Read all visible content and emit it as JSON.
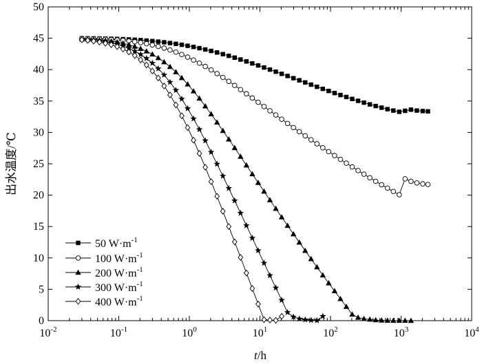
{
  "chart_data": {
    "type": "line",
    "xscale": "log",
    "xlim": [
      0.01,
      10000
    ],
    "ylim": [
      0,
      50
    ],
    "grid": false,
    "legend_position": "bottom-left",
    "xlabel": {
      "italic": "t",
      "rest": "/h"
    },
    "ylabel": "出水温度/℃",
    "x_ticks": [
      {
        "value": 0.01,
        "base": "10",
        "exp": "-2"
      },
      {
        "value": 0.1,
        "base": "10",
        "exp": "-1"
      },
      {
        "value": 1,
        "base": "10",
        "exp": "0"
      },
      {
        "value": 10,
        "base": "10",
        "exp": "1"
      },
      {
        "value": 100,
        "base": "10",
        "exp": "2"
      },
      {
        "value": 1000,
        "base": "10",
        "exp": "3"
      },
      {
        "value": 10000,
        "base": "10",
        "exp": "4"
      }
    ],
    "y_ticks": [
      0,
      5,
      10,
      15,
      20,
      25,
      30,
      35,
      40,
      45,
      50
    ],
    "series": [
      {
        "name": "50 W·m-1",
        "label_main": "50 W·m",
        "label_sup": "-1",
        "marker": "square",
        "x": [
          0.03,
          0.0363,
          0.044,
          0.0533,
          0.0646,
          0.0782,
          0.0948,
          0.1148,
          0.139,
          0.1684,
          0.204,
          0.247,
          0.2993,
          0.3625,
          0.4392,
          0.532,
          0.6444,
          0.7806,
          0.9456,
          1.1454,
          1.3875,
          1.6808,
          2.036,
          2.4663,
          2.9876,
          3.619,
          4.3839,
          5.3104,
          6.4328,
          7.7924,
          9.4394,
          11.4344,
          13.8512,
          16.7787,
          20.3249,
          24.6207,
          29.8244,
          36.1279,
          43.7636,
          53.0132,
          64.2178,
          77.7906,
          94.2318,
          114.1479,
          138.2734,
          167.4981,
          202.9,
          245.78,
          297.73,
          360.66,
          436.88,
          529.22,
          641.07,
          776.57,
          940.7,
          1139.5,
          1380.4,
          1672.1,
          2025.5,
          2400
        ],
        "y": [
          44.99,
          44.98,
          44.97,
          44.96,
          44.94,
          44.92,
          44.89,
          44.85,
          44.81,
          44.76,
          44.7,
          44.63,
          44.55,
          44.46,
          44.36,
          44.24,
          44.11,
          43.96,
          43.8,
          43.62,
          43.42,
          43.21,
          42.98,
          42.73,
          42.47,
          42.2,
          41.91,
          41.61,
          41.31,
          40.99,
          40.67,
          40.34,
          40.01,
          39.67,
          39.33,
          38.99,
          38.64,
          38.3,
          37.96,
          37.61,
          37.27,
          36.94,
          36.6,
          36.27,
          35.95,
          35.64,
          35.33,
          35.03,
          34.74,
          34.46,
          34.2,
          33.94,
          33.7,
          33.48,
          33.28,
          33.44,
          33.62,
          33.48,
          33.4,
          33.35
        ]
      },
      {
        "name": "100 W·m-1",
        "label_main": "100 W·m",
        "label_sup": "-1",
        "marker": "circle",
        "x": [
          0.03,
          0.0363,
          0.044,
          0.0533,
          0.0646,
          0.0782,
          0.0948,
          0.1148,
          0.139,
          0.1684,
          0.204,
          0.247,
          0.2993,
          0.3625,
          0.4392,
          0.532,
          0.6444,
          0.7806,
          0.9456,
          1.1454,
          1.3875,
          1.6808,
          2.036,
          2.4663,
          2.9876,
          3.619,
          4.3839,
          5.3104,
          6.4328,
          7.7924,
          9.4394,
          11.4344,
          13.8512,
          16.7787,
          20.3249,
          24.6207,
          29.8244,
          36.1279,
          43.7636,
          53.0132,
          64.2178,
          77.7906,
          94.2318,
          114.1479,
          138.2734,
          167.4981,
          202.9,
          245.78,
          297.73,
          360.66,
          436.88,
          529.22,
          641.07,
          776.57,
          940.7,
          1139.5,
          1380.4,
          1672.1,
          2025.5,
          2400
        ],
        "y": [
          44.96,
          44.94,
          44.92,
          44.89,
          44.85,
          44.8,
          44.74,
          44.66,
          44.56,
          44.44,
          44.3,
          44.13,
          43.93,
          43.7,
          43.43,
          43.13,
          42.79,
          42.41,
          41.99,
          41.53,
          41.04,
          40.51,
          39.95,
          39.37,
          38.76,
          38.13,
          37.48,
          36.82,
          36.15,
          35.48,
          34.8,
          34.12,
          33.44,
          32.77,
          32.1,
          31.43,
          30.77,
          30.11,
          29.46,
          28.82,
          28.18,
          27.55,
          26.93,
          26.31,
          25.7,
          25.1,
          24.5,
          23.92,
          23.34,
          22.77,
          22.21,
          21.66,
          21.12,
          20.59,
          20.07,
          22.6,
          22.2,
          21.95,
          21.8,
          21.7
        ]
      },
      {
        "name": "200 W·m-1",
        "label_main": "200 W·m",
        "label_sup": "-1",
        "marker": "triangle",
        "x": [
          0.03,
          0.0363,
          0.044,
          0.0533,
          0.0646,
          0.0782,
          0.0948,
          0.1148,
          0.139,
          0.1684,
          0.204,
          0.247,
          0.2993,
          0.3625,
          0.4392,
          0.532,
          0.6444,
          0.7806,
          0.9456,
          1.1454,
          1.3875,
          1.6808,
          2.036,
          2.4663,
          2.9876,
          3.619,
          4.3839,
          5.3104,
          6.4328,
          7.7924,
          9.4394,
          11.4344,
          13.8512,
          16.7787,
          20.3249,
          24.6207,
          29.8244,
          36.1279,
          43.7636,
          53.0132,
          64.2178,
          77.7906,
          94.2318,
          114.1479,
          138.2734,
          167.4981,
          202.9,
          245.78,
          297.73,
          360.66,
          436.88,
          529.22,
          641.07,
          776.57,
          940.7,
          1139.5,
          1380.4
        ],
        "y": [
          44.9,
          44.86,
          44.81,
          44.74,
          44.65,
          44.54,
          44.39,
          44.2,
          43.97,
          43.69,
          43.34,
          42.93,
          42.44,
          41.87,
          41.21,
          40.46,
          39.62,
          38.69,
          37.67,
          36.57,
          35.41,
          34.18,
          32.91,
          31.6,
          30.26,
          28.9,
          27.53,
          26.15,
          24.76,
          23.37,
          21.98,
          20.6,
          19.22,
          17.85,
          16.49,
          15.14,
          13.8,
          12.47,
          11.15,
          9.84,
          8.54,
          7.25,
          5.98,
          4.72,
          3.47,
          2.23,
          1.0,
          0.5,
          0.3,
          0.2,
          0.1,
          0.05,
          0.02,
          0.01,
          0.01,
          0.005,
          0.0
        ]
      },
      {
        "name": "300 W·m-1",
        "label_main": "300 W·m",
        "label_sup": "-1",
        "marker": "star",
        "x": [
          0.03,
          0.0363,
          0.044,
          0.0533,
          0.0646,
          0.0782,
          0.0948,
          0.1148,
          0.139,
          0.1684,
          0.204,
          0.247,
          0.2993,
          0.3625,
          0.4392,
          0.532,
          0.6444,
          0.7806,
          0.9456,
          1.1454,
          1.3875,
          1.6808,
          2.036,
          2.4663,
          2.9876,
          3.619,
          4.3839,
          5.3104,
          6.4328,
          7.7924,
          9.4394,
          11.4344,
          13.8512,
          16.7787,
          20.3249,
          24.6207,
          29.8244,
          36.1279,
          43.7636,
          53.0132,
          64.2178,
          77.7906
        ],
        "y": [
          44.84,
          44.78,
          44.7,
          44.59,
          44.45,
          44.27,
          44.04,
          43.76,
          43.4,
          42.96,
          42.43,
          41.79,
          41.04,
          40.16,
          39.15,
          38.0,
          36.72,
          35.32,
          33.8,
          32.18,
          30.47,
          28.69,
          26.85,
          24.96,
          23.04,
          21.09,
          19.12,
          17.14,
          15.15,
          13.16,
          11.17,
          9.18,
          7.2,
          5.23,
          3.27,
          1.32,
          0.6,
          0.3,
          0.15,
          0.08,
          0.03,
          0.7
        ]
      },
      {
        "name": "400 W·m-1",
        "label_main": "400 W·m",
        "label_sup": "-1",
        "marker": "diamond",
        "x": [
          0.03,
          0.0363,
          0.044,
          0.0533,
          0.0646,
          0.0782,
          0.0948,
          0.1148,
          0.139,
          0.1684,
          0.204,
          0.247,
          0.2993,
          0.3625,
          0.4392,
          0.532,
          0.6444,
          0.7806,
          0.9456,
          1.1454,
          1.3875,
          1.6808,
          2.036,
          2.4663,
          2.9876,
          3.619,
          4.3839,
          5.3104,
          6.4328,
          7.7924,
          9.4394,
          11.4344,
          13.8512,
          16.7787,
          20.3249
        ],
        "y": [
          44.76,
          44.66,
          44.54,
          44.39,
          44.2,
          43.96,
          43.66,
          43.28,
          42.81,
          42.24,
          41.55,
          40.74,
          39.78,
          38.67,
          37.4,
          35.97,
          34.38,
          32.64,
          30.76,
          28.76,
          26.65,
          24.44,
          22.16,
          19.82,
          17.43,
          15.0,
          12.55,
          10.08,
          7.6,
          5.12,
          2.64,
          0.16,
          0.1,
          0.05,
          0.7
        ]
      }
    ]
  }
}
